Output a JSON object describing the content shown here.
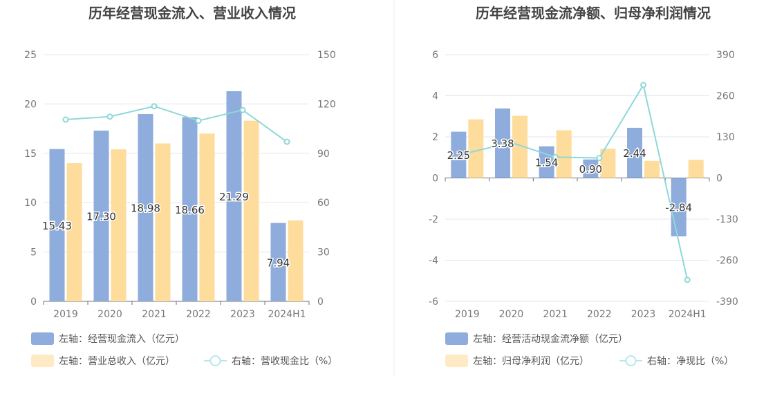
{
  "chart_data": [
    {
      "type": "bar",
      "title": "历年经营现金流入、营业收入情况",
      "categories": [
        "2019",
        "2020",
        "2021",
        "2022",
        "2023",
        "2024H1"
      ],
      "left_axis": {
        "ticks": [
          "0",
          "5",
          "10",
          "15",
          "20",
          "25"
        ],
        "ylim": [
          0,
          25
        ]
      },
      "right_axis": {
        "ticks": [
          "0",
          "30",
          "60",
          "90",
          "120",
          "150"
        ],
        "ylim": [
          0,
          150
        ]
      },
      "grid": true,
      "series": [
        {
          "name": "左轴：经营现金流入（亿元）",
          "type": "bar",
          "axis": "left",
          "color": "#8eacdc",
          "values": [
            15.43,
            17.3,
            18.98,
            18.66,
            21.29,
            7.94
          ],
          "labels": [
            "15.43",
            "17.30",
            "18.98",
            "18.66",
            "21.29",
            "7.94"
          ]
        },
        {
          "name": "左轴：营业总收入（亿元）",
          "type": "bar",
          "axis": "left",
          "color": "#fddc9c",
          "values": [
            14.0,
            15.4,
            16.0,
            17.0,
            18.3,
            8.2
          ]
        },
        {
          "name": "右轴：营收现金比（%）",
          "type": "line",
          "axis": "right",
          "color": "#8fd7d9",
          "values": [
            110.5,
            112.3,
            118.6,
            109.8,
            116.3,
            97.0
          ]
        }
      ],
      "legend_position": "bottom-left"
    },
    {
      "type": "bar",
      "title": "历年经营现金流净额、归母净利润情况",
      "categories": [
        "2019",
        "2020",
        "2021",
        "2022",
        "2023",
        "2024H1"
      ],
      "left_axis": {
        "ticks": [
          "-6",
          "-4",
          "-2",
          "0",
          "2",
          "4",
          "6"
        ],
        "ylim": [
          -6,
          6
        ]
      },
      "right_axis": {
        "ticks": [
          "-390",
          "-260",
          "-130",
          "0",
          "130",
          "260",
          "390"
        ],
        "ylim": [
          -390,
          390
        ]
      },
      "grid": true,
      "series": [
        {
          "name": "左轴：经营活动现金流净额（亿元）",
          "type": "bar",
          "axis": "left",
          "color": "#8eacdc",
          "values": [
            2.25,
            3.38,
            1.54,
            0.9,
            2.44,
            -2.84
          ],
          "labels": [
            "2.25",
            "3.38",
            "1.54",
            "0.90",
            "2.44",
            "-2.84"
          ]
        },
        {
          "name": "左轴：归母净利润（亿元）",
          "type": "bar",
          "axis": "left",
          "color": "#fddc9c",
          "values": [
            2.85,
            3.02,
            2.32,
            1.42,
            0.83,
            0.88
          ]
        },
        {
          "name": "右轴：净现比（%）",
          "type": "line",
          "axis": "right",
          "color": "#8fd7d9",
          "values": [
            79,
            112,
            66,
            63,
            294,
            -322
          ]
        }
      ],
      "legend_position": "bottom-left"
    }
  ]
}
